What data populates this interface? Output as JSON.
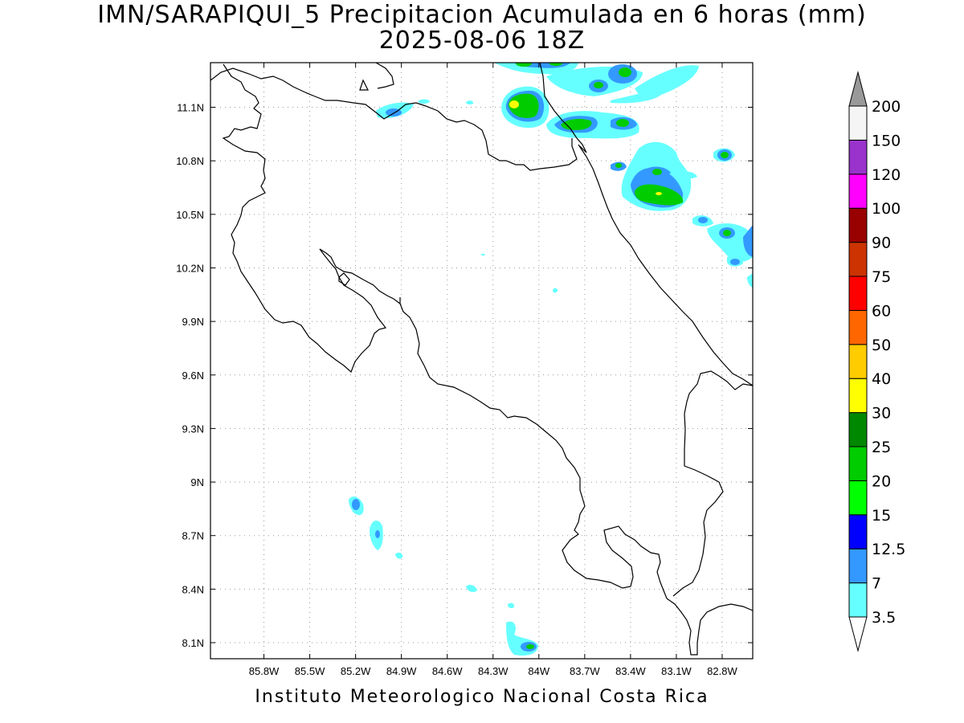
{
  "title": {
    "line1": "IMN/SARAPIQUI_5 Precipitacion Acumulada en 6 horas (mm)",
    "line2": "2025-08-06 18Z"
  },
  "footer": "Instituto Meteorologico Nacional Costa Rica",
  "map": {
    "lon_range": [
      -86.15,
      -82.6
    ],
    "lat_range": [
      8.01,
      11.35
    ],
    "x_tick_labels": [
      "85.8W",
      "85.5W",
      "85.2W",
      "84.9W",
      "84.6W",
      "84.3W",
      "84W",
      "83.7W",
      "83.4W",
      "83.1W",
      "82.8W"
    ],
    "x_tick_values": [
      -85.8,
      -85.5,
      -85.2,
      -84.9,
      -84.6,
      -84.3,
      -84.0,
      -83.7,
      -83.4,
      -83.1,
      -82.8
    ],
    "y_tick_labels": [
      "8.1N",
      "8.4N",
      "8.7N",
      "9N",
      "9.3N",
      "9.6N",
      "9.9N",
      "10.2N",
      "10.5N",
      "10.8N",
      "11.1N"
    ],
    "y_tick_values": [
      8.1,
      8.4,
      8.7,
      9.0,
      9.3,
      9.6,
      9.9,
      10.2,
      10.5,
      10.8,
      11.1
    ],
    "grid": true
  },
  "colorbar": {
    "labels": [
      "3.5",
      "7",
      "12.5",
      "15",
      "20",
      "25",
      "30",
      "40",
      "50",
      "60",
      "75",
      "90",
      "100",
      "120",
      "150",
      "200"
    ],
    "colors": [
      "#ffffff",
      "#66ffff",
      "#3399ff",
      "#0000ff",
      "#00ff00",
      "#00cc00",
      "#008800",
      "#ffff00",
      "#ffcc00",
      "#ff6600",
      "#ff0000",
      "#cc3300",
      "#990000",
      "#ff00ff",
      "#9933cc",
      "#f5f5f5",
      "#999999"
    ]
  }
}
